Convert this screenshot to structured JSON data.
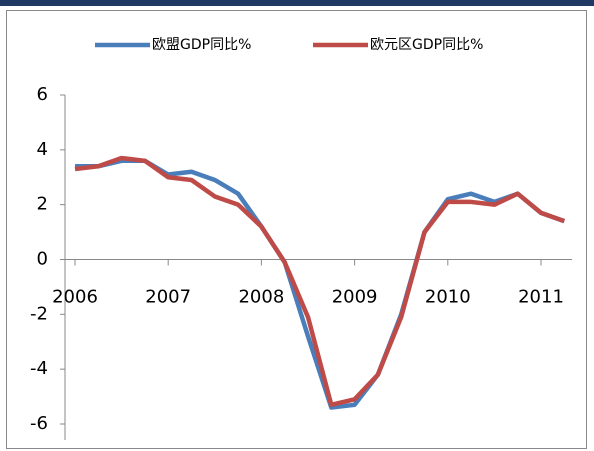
{
  "chart_data": {
    "type": "line",
    "categories": [
      "2006",
      null,
      null,
      null,
      "2007",
      null,
      null,
      null,
      "2008",
      null,
      null,
      null,
      "2009",
      null,
      null,
      null,
      "2010",
      null,
      null,
      null,
      "2011",
      null
    ],
    "series": [
      {
        "name": "欧盟GDP同比%",
        "color": "#4a7ebb",
        "values": [
          3.4,
          3.4,
          3.6,
          3.6,
          3.1,
          3.2,
          2.9,
          2.4,
          1.2,
          -0.1,
          -2.8,
          -5.4,
          -5.3,
          -4.2,
          -2.0,
          1.0,
          2.2,
          2.4,
          2.1,
          2.4,
          1.7,
          1.4
        ]
      },
      {
        "name": "欧元区GDP同比%",
        "color": "#be4b48",
        "values": [
          3.3,
          3.4,
          3.7,
          3.6,
          3.0,
          2.9,
          2.3,
          2.0,
          1.2,
          -0.1,
          -2.1,
          -5.3,
          -5.1,
          -4.2,
          -2.1,
          1.0,
          2.1,
          2.1,
          2.0,
          2.4,
          1.7,
          1.4
        ]
      }
    ],
    "ylim": [
      -6,
      6
    ],
    "yticks": [
      -6,
      -4,
      -2,
      0,
      2,
      4,
      6
    ],
    "legend": "top"
  }
}
